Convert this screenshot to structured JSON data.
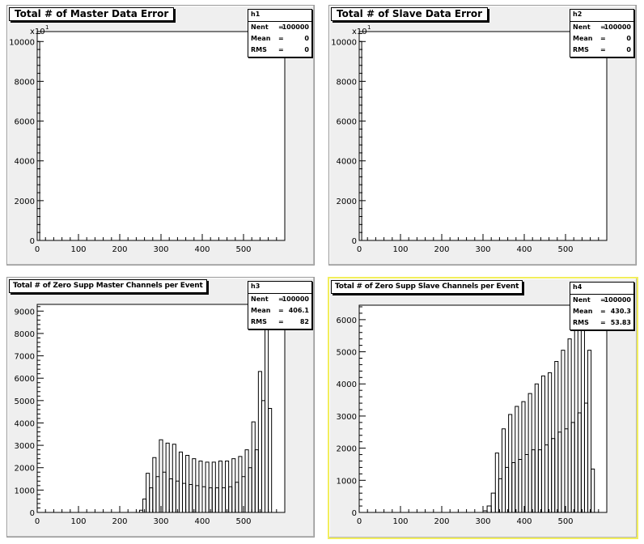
{
  "pads": [
    {
      "id": "h1",
      "title": "Total # of Master Data Error",
      "title_size": "big",
      "selected": false,
      "stats": {
        "name": "h1",
        "rows": [
          {
            "k": "Nent",
            "v": "100000"
          },
          {
            "k": "Mean",
            "v": "0"
          },
          {
            "k": "RMS",
            "v": "0"
          }
        ]
      }
    },
    {
      "id": "h2",
      "title": "Total # of Slave Data Error",
      "title_size": "big",
      "selected": false,
      "stats": {
        "name": "h2",
        "rows": [
          {
            "k": "Nent",
            "v": "100000"
          },
          {
            "k": "Mean",
            "v": "0"
          },
          {
            "k": "RMS",
            "v": "0"
          }
        ]
      }
    },
    {
      "id": "h3",
      "title": "Total # of Zero  Supp Master Channels per Event",
      "title_size": "small",
      "selected": false,
      "stats": {
        "name": "h3",
        "rows": [
          {
            "k": "Nent",
            "v": "100000"
          },
          {
            "k": "Mean",
            "v": "406.1"
          },
          {
            "k": "RMS",
            "v": "82"
          }
        ]
      }
    },
    {
      "id": "h4",
      "title": "Total # of Zero  Supp Slave  Channels per Event",
      "title_size": "small",
      "selected": true,
      "stats": {
        "name": "h4",
        "rows": [
          {
            "k": "Nent",
            "v": "100000"
          },
          {
            "k": "Mean",
            "v": "430.3"
          },
          {
            "k": "RMS",
            "v": "53.83"
          }
        ]
      }
    }
  ],
  "chart_data": [
    {
      "type": "bar",
      "hist": "h1",
      "title": "Total # of Master Data Error",
      "xlim": [
        0,
        600
      ],
      "ylim": [
        0,
        10500
      ],
      "xticks": [
        0,
        100,
        200,
        300,
        400,
        500
      ],
      "xtick_labels": [
        "0",
        "100",
        "200",
        "300",
        "400",
        "500"
      ],
      "yticks": [
        0,
        2000,
        4000,
        6000,
        8000,
        10000
      ],
      "ytick_labels": [
        "0",
        "2000",
        "4000",
        "6000",
        "8000",
        "10000"
      ],
      "y_multiplier": "x10",
      "y_multiplier_exp": "1",
      "bins": [
        {
          "x0": 0,
          "x1": 6,
          "y": 10000
        }
      ]
    },
    {
      "type": "bar",
      "hist": "h2",
      "title": "Total # of Slave Data Error",
      "xlim": [
        0,
        600
      ],
      "ylim": [
        0,
        10500
      ],
      "xticks": [
        0,
        100,
        200,
        300,
        400,
        500
      ],
      "xtick_labels": [
        "0",
        "100",
        "200",
        "300",
        "400",
        "500"
      ],
      "yticks": [
        0,
        2000,
        4000,
        6000,
        8000,
        10000
      ],
      "ytick_labels": [
        "0",
        "2000",
        "4000",
        "6000",
        "8000",
        "10000"
      ],
      "y_multiplier": "x10",
      "y_multiplier_exp": "1",
      "bins": [
        {
          "x0": 0,
          "x1": 6,
          "y": 10000
        }
      ]
    },
    {
      "type": "bar",
      "hist": "h3",
      "title": "Total # of Zero  Supp Master Channels per Event",
      "xlim": [
        0,
        600
      ],
      "ylim": [
        0,
        9300
      ],
      "xticks": [
        0,
        100,
        200,
        300,
        400,
        500
      ],
      "xtick_labels": [
        "0",
        "100",
        "200",
        "300",
        "400",
        "500"
      ],
      "yticks": [
        0,
        1000,
        2000,
        3000,
        4000,
        5000,
        6000,
        7000,
        8000,
        9000
      ],
      "ytick_labels": [
        "0",
        "1000",
        "2000",
        "3000",
        "4000",
        "5000",
        "6000",
        "7000",
        "8000",
        "9000"
      ],
      "bins": [
        {
          "x0": 248,
          "x1": 256,
          "y": 100
        },
        {
          "x0": 256,
          "x1": 264,
          "y": 600
        },
        {
          "x0": 264,
          "x1": 272,
          "y": 1750
        },
        {
          "x0": 272,
          "x1": 280,
          "y": 1100
        },
        {
          "x0": 280,
          "x1": 288,
          "y": 2450
        },
        {
          "x0": 288,
          "x1": 296,
          "y": 1600
        },
        {
          "x0": 296,
          "x1": 304,
          "y": 3250
        },
        {
          "x0": 304,
          "x1": 312,
          "y": 1800
        },
        {
          "x0": 312,
          "x1": 320,
          "y": 3100
        },
        {
          "x0": 320,
          "x1": 328,
          "y": 1500
        },
        {
          "x0": 328,
          "x1": 336,
          "y": 3050
        },
        {
          "x0": 336,
          "x1": 344,
          "y": 1400
        },
        {
          "x0": 344,
          "x1": 352,
          "y": 2700
        },
        {
          "x0": 352,
          "x1": 360,
          "y": 1300
        },
        {
          "x0": 360,
          "x1": 368,
          "y": 2550
        },
        {
          "x0": 368,
          "x1": 376,
          "y": 1250
        },
        {
          "x0": 376,
          "x1": 384,
          "y": 2400
        },
        {
          "x0": 384,
          "x1": 392,
          "y": 1200
        },
        {
          "x0": 392,
          "x1": 400,
          "y": 2300
        },
        {
          "x0": 400,
          "x1": 408,
          "y": 1150
        },
        {
          "x0": 408,
          "x1": 416,
          "y": 2250
        },
        {
          "x0": 416,
          "x1": 424,
          "y": 1100
        },
        {
          "x0": 424,
          "x1": 432,
          "y": 2250
        },
        {
          "x0": 432,
          "x1": 440,
          "y": 1100
        },
        {
          "x0": 440,
          "x1": 448,
          "y": 2300
        },
        {
          "x0": 448,
          "x1": 456,
          "y": 1100
        },
        {
          "x0": 456,
          "x1": 464,
          "y": 2300
        },
        {
          "x0": 464,
          "x1": 472,
          "y": 1150
        },
        {
          "x0": 472,
          "x1": 480,
          "y": 2400
        },
        {
          "x0": 480,
          "x1": 488,
          "y": 1350
        },
        {
          "x0": 488,
          "x1": 496,
          "y": 2500
        },
        {
          "x0": 496,
          "x1": 504,
          "y": 1600
        },
        {
          "x0": 504,
          "x1": 512,
          "y": 2800
        },
        {
          "x0": 512,
          "x1": 520,
          "y": 2000
        },
        {
          "x0": 520,
          "x1": 528,
          "y": 4050
        },
        {
          "x0": 528,
          "x1": 536,
          "y": 2800
        },
        {
          "x0": 536,
          "x1": 544,
          "y": 6300
        },
        {
          "x0": 544,
          "x1": 552,
          "y": 5000
        },
        {
          "x0": 552,
          "x1": 560,
          "y": 8900
        },
        {
          "x0": 560,
          "x1": 568,
          "y": 4650
        }
      ]
    },
    {
      "type": "bar",
      "hist": "h4",
      "title": "Total # of Zero  Supp Slave  Channels per Event",
      "xlim": [
        0,
        600
      ],
      "ylim": [
        0,
        6450
      ],
      "xticks": [
        0,
        100,
        200,
        300,
        400,
        500
      ],
      "xtick_labels": [
        "0",
        "100",
        "200",
        "300",
        "400",
        "500"
      ],
      "yticks": [
        0,
        1000,
        2000,
        3000,
        4000,
        5000,
        6000
      ],
      "ytick_labels": [
        "0",
        "1000",
        "2000",
        "3000",
        "4000",
        "5000",
        "6000"
      ],
      "bins": [
        {
          "x0": 300,
          "x1": 310,
          "y": 50
        },
        {
          "x0": 310,
          "x1": 320,
          "y": 200
        },
        {
          "x0": 320,
          "x1": 330,
          "y": 600
        },
        {
          "x0": 330,
          "x1": 338,
          "y": 1850
        },
        {
          "x0": 338,
          "x1": 346,
          "y": 1050
        },
        {
          "x0": 346,
          "x1": 354,
          "y": 2600
        },
        {
          "x0": 354,
          "x1": 362,
          "y": 1400
        },
        {
          "x0": 362,
          "x1": 370,
          "y": 3050
        },
        {
          "x0": 370,
          "x1": 378,
          "y": 1550
        },
        {
          "x0": 378,
          "x1": 386,
          "y": 3300
        },
        {
          "x0": 386,
          "x1": 394,
          "y": 1650
        },
        {
          "x0": 394,
          "x1": 402,
          "y": 3450
        },
        {
          "x0": 402,
          "x1": 410,
          "y": 1800
        },
        {
          "x0": 410,
          "x1": 418,
          "y": 3700
        },
        {
          "x0": 418,
          "x1": 426,
          "y": 1950
        },
        {
          "x0": 426,
          "x1": 434,
          "y": 4000
        },
        {
          "x0": 434,
          "x1": 442,
          "y": 1950
        },
        {
          "x0": 442,
          "x1": 450,
          "y": 4250
        },
        {
          "x0": 450,
          "x1": 458,
          "y": 2100
        },
        {
          "x0": 458,
          "x1": 466,
          "y": 4350
        },
        {
          "x0": 466,
          "x1": 474,
          "y": 2300
        },
        {
          "x0": 474,
          "x1": 482,
          "y": 4700
        },
        {
          "x0": 482,
          "x1": 490,
          "y": 2500
        },
        {
          "x0": 490,
          "x1": 498,
          "y": 5050
        },
        {
          "x0": 498,
          "x1": 506,
          "y": 2600
        },
        {
          "x0": 506,
          "x1": 514,
          "y": 5400
        },
        {
          "x0": 514,
          "x1": 522,
          "y": 2800
        },
        {
          "x0": 522,
          "x1": 530,
          "y": 5700
        },
        {
          "x0": 530,
          "x1": 538,
          "y": 3100
        },
        {
          "x0": 538,
          "x1": 546,
          "y": 6100
        },
        {
          "x0": 546,
          "x1": 554,
          "y": 3400
        },
        {
          "x0": 554,
          "x1": 562,
          "y": 5050
        },
        {
          "x0": 562,
          "x1": 570,
          "y": 1350
        }
      ]
    }
  ]
}
